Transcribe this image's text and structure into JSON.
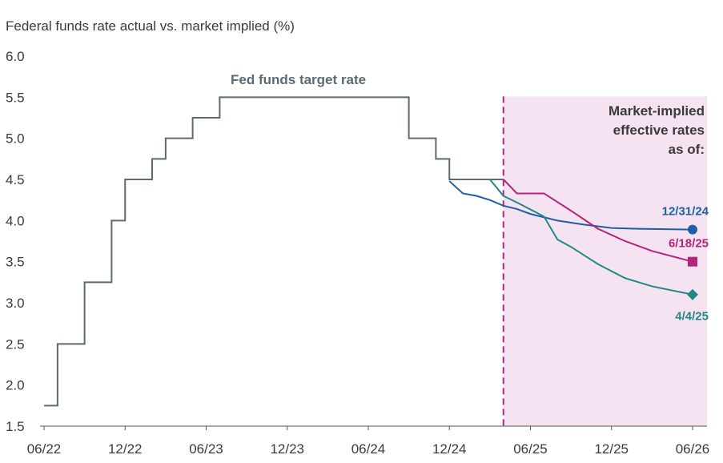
{
  "chart_data": {
    "type": "line",
    "title": "Federal funds rate actual vs. market implied (%)",
    "ylim": [
      1.5,
      6.0
    ],
    "y_ticks": [
      "1.5",
      "2.0",
      "2.5",
      "3.0",
      "3.5",
      "4.0",
      "4.5",
      "5.0",
      "5.5",
      "6.0"
    ],
    "x_ticks": [
      "06/22",
      "12/22",
      "06/23",
      "12/23",
      "06/24",
      "12/24",
      "06/25",
      "12/25",
      "06/26"
    ],
    "x_range": [
      "2022-06",
      "2026-06"
    ],
    "grid": false,
    "forecast_region": {
      "start": "2025-04",
      "end": "2026-06"
    },
    "region_label": [
      "Market-implied",
      "effective rates",
      "as of:"
    ],
    "colors": {
      "fed": "#5b6a73",
      "s1231": "#1f5fa6",
      "s0618": "#b3247a",
      "s0404": "#1f8a84",
      "region": "#f5e3f2",
      "divider": "#b3247a"
    },
    "fed_series": {
      "name": "Fed funds target rate",
      "type": "step",
      "points": [
        [
          "2022-06",
          1.75
        ],
        [
          "2022-07",
          2.5
        ],
        [
          "2022-09",
          3.25
        ],
        [
          "2022-11",
          4.0
        ],
        [
          "2022-12",
          4.5
        ],
        [
          "2023-02",
          4.75
        ],
        [
          "2023-03",
          5.0
        ],
        [
          "2023-05",
          5.25
        ],
        [
          "2023-07",
          5.5
        ],
        [
          "2024-09",
          5.0
        ],
        [
          "2024-11",
          4.75
        ],
        [
          "2024-12",
          4.5
        ],
        [
          "2025-04",
          4.5
        ]
      ]
    },
    "series": [
      {
        "name": "12/31/24",
        "marker": "circle",
        "points": [
          [
            "2024-12",
            4.48
          ],
          [
            "2025-01",
            4.33
          ],
          [
            "2025-02",
            4.3
          ],
          [
            "2025-03",
            4.25
          ],
          [
            "2025-04",
            4.18
          ],
          [
            "2025-05",
            4.14
          ],
          [
            "2025-06",
            4.08
          ],
          [
            "2025-08",
            4.0
          ],
          [
            "2025-10",
            3.95
          ],
          [
            "2025-12",
            3.91
          ],
          [
            "2026-02",
            3.9
          ],
          [
            "2026-06",
            3.89
          ]
        ]
      },
      {
        "name": "6/18/25",
        "marker": "square",
        "points": [
          [
            "2025-04",
            4.5
          ],
          [
            "2025-05",
            4.33
          ],
          [
            "2025-07",
            4.33
          ],
          [
            "2025-09",
            4.12
          ],
          [
            "2025-11",
            3.9
          ],
          [
            "2026-01",
            3.75
          ],
          [
            "2026-03",
            3.63
          ],
          [
            "2026-06",
            3.5
          ]
        ]
      },
      {
        "name": "4/4/25",
        "marker": "diamond",
        "points": [
          [
            "2025-03",
            4.5
          ],
          [
            "2025-04",
            4.3
          ],
          [
            "2025-05",
            4.22
          ],
          [
            "2025-07",
            4.05
          ],
          [
            "2025-08",
            3.77
          ],
          [
            "2025-09",
            3.68
          ],
          [
            "2025-11",
            3.47
          ],
          [
            "2026-01",
            3.3
          ],
          [
            "2026-03",
            3.2
          ],
          [
            "2026-06",
            3.1
          ]
        ]
      }
    ]
  }
}
